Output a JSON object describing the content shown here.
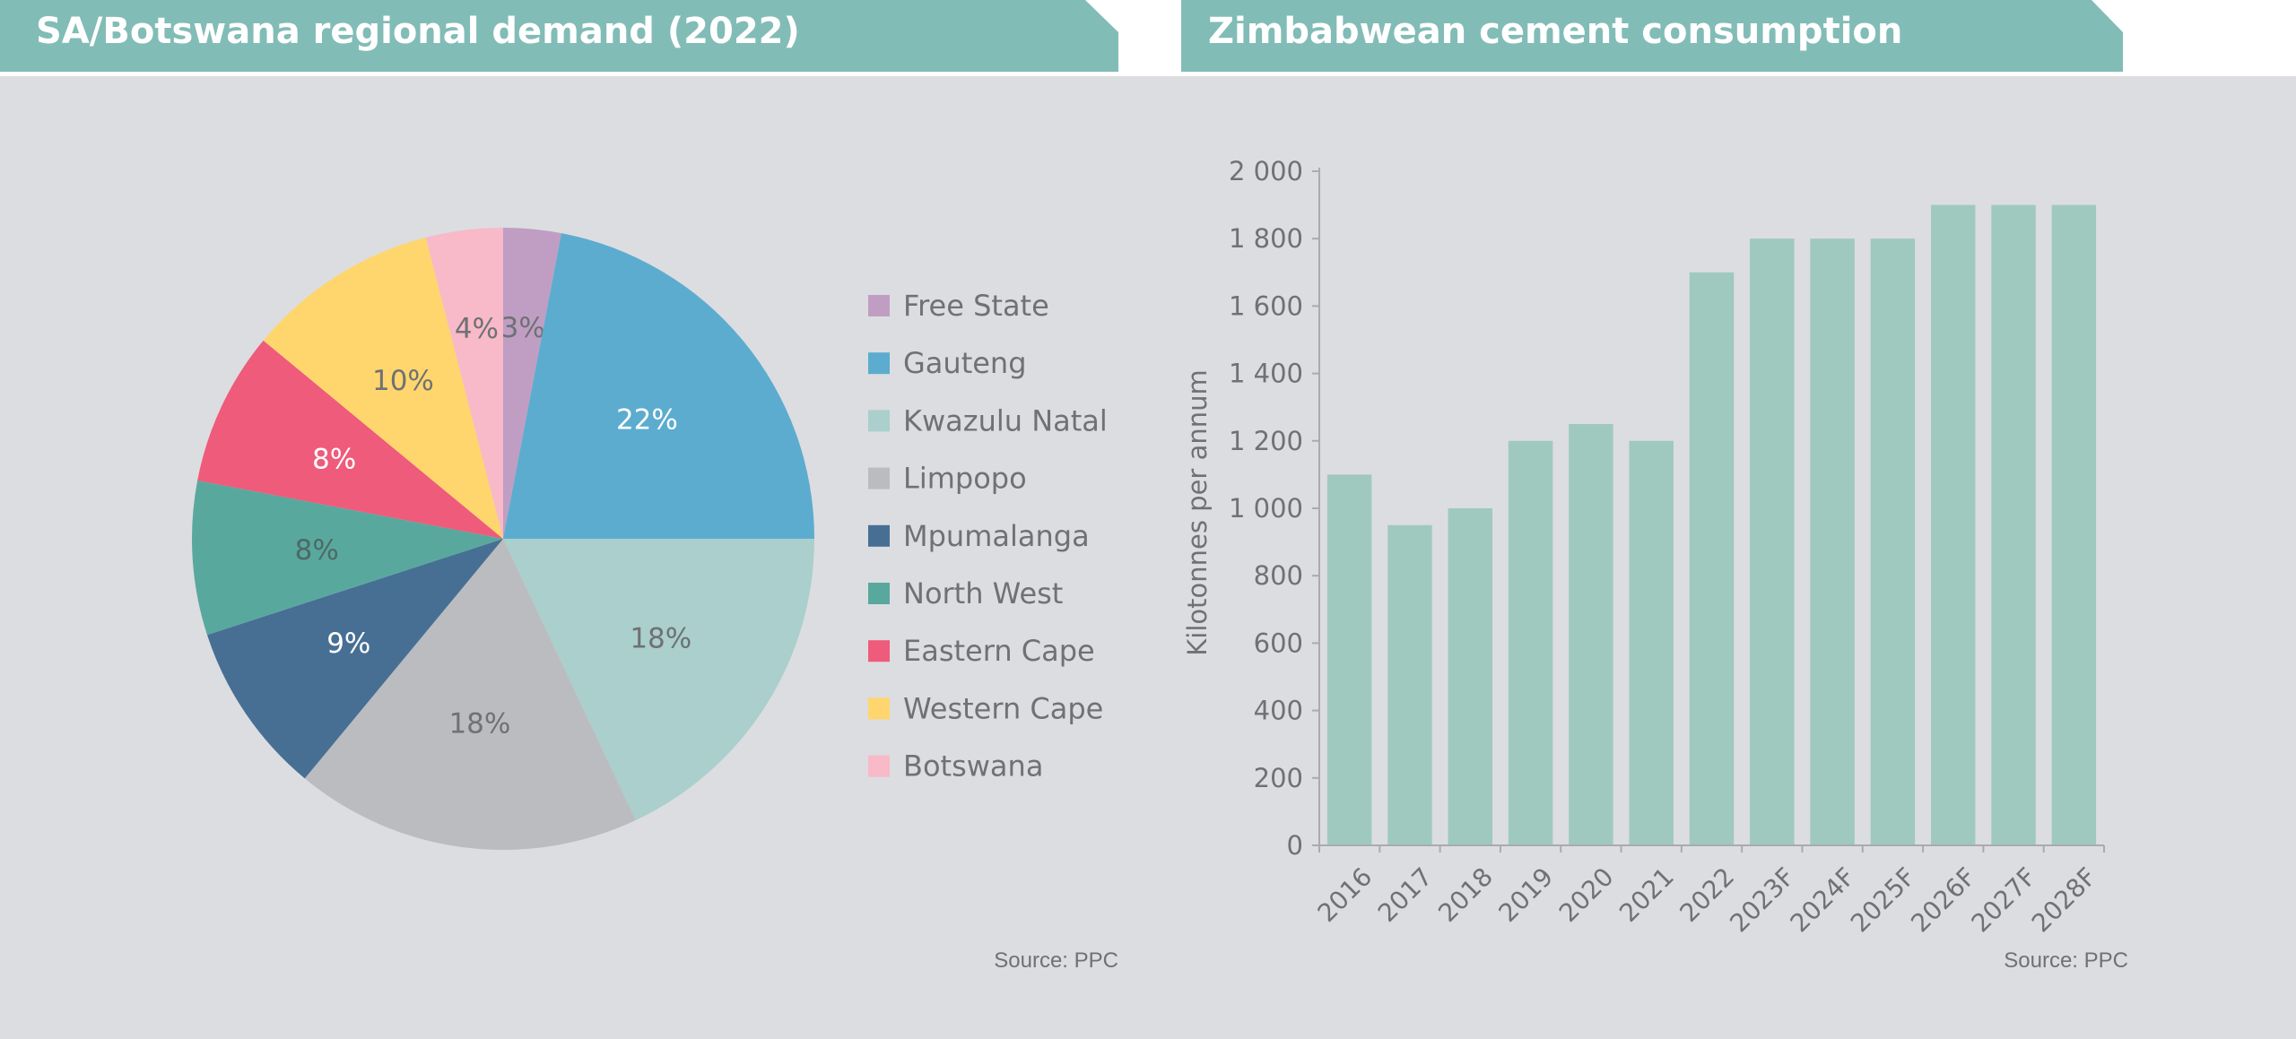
{
  "colors": {
    "header": "#82bcb6",
    "panel": "#dcdde0",
    "text": "#6f7175",
    "bar": "#9fc9bf"
  },
  "left_panel": {
    "title": "SA/Botswana regional demand (2022)",
    "source": "Source: PPC"
  },
  "right_panel": {
    "title": "Zimbabwean cement consumption",
    "source": "Source: PPC"
  },
  "chart_data": [
    {
      "type": "pie",
      "title": "SA/Botswana regional demand (2022)",
      "legend_position": "right",
      "slices": [
        {
          "label": "Free State",
          "value": 3,
          "display": "3%",
          "color": "#c09ec3",
          "label_color": "#6f7175"
        },
        {
          "label": "Gauteng",
          "value": 22,
          "display": "22%",
          "color": "#5caccf",
          "label_color": "#ffffff"
        },
        {
          "label": "Kwazulu Natal",
          "value": 18,
          "display": "18%",
          "color": "#aacfcc",
          "label_color": "#6f7175"
        },
        {
          "label": "Limpopo",
          "value": 18,
          "display": "18%",
          "color": "#bbbcc0",
          "label_color": "#6f7175"
        },
        {
          "label": "Mpumalanga",
          "value": 9,
          "display": "9%",
          "color": "#476f94",
          "label_color": "#ffffff"
        },
        {
          "label": "North West",
          "value": 8,
          "display": "8%",
          "color": "#59a89e",
          "label_color": "#4d6966"
        },
        {
          "label": "Eastern Cape",
          "value": 8,
          "display": "8%",
          "color": "#ef5b7b",
          "label_color": "#ffffff"
        },
        {
          "label": "Western Cape",
          "value": 10,
          "display": "10%",
          "color": "#fed66d",
          "label_color": "#6f7175"
        },
        {
          "label": "Botswana",
          "value": 4,
          "display": "4%",
          "color": "#f8b9c9",
          "label_color": "#6f7175"
        }
      ]
    },
    {
      "type": "bar",
      "title": "Zimbabwean cement consumption",
      "ylabel": "Kilotonnes per annum",
      "xlabel": "",
      "categories": [
        "2016",
        "2017",
        "2018",
        "2019",
        "2020",
        "2021",
        "2022",
        "2023F",
        "2024F",
        "2025F",
        "2026F",
        "2027F",
        "2028F"
      ],
      "values": [
        1100,
        950,
        1000,
        1200,
        1250,
        1200,
        1700,
        1800,
        1800,
        1800,
        1900,
        1900,
        1900
      ],
      "ylim": [
        0,
        2000
      ],
      "yticks": [
        0,
        200,
        400,
        600,
        800,
        1000,
        1200,
        1400,
        1600,
        1800,
        2000
      ],
      "ytick_labels": [
        "0",
        "200",
        "400",
        "600",
        "800",
        "1 000",
        "1 200",
        "1 400",
        "1 600",
        "1 800",
        "2 000"
      ],
      "grid": false
    }
  ]
}
